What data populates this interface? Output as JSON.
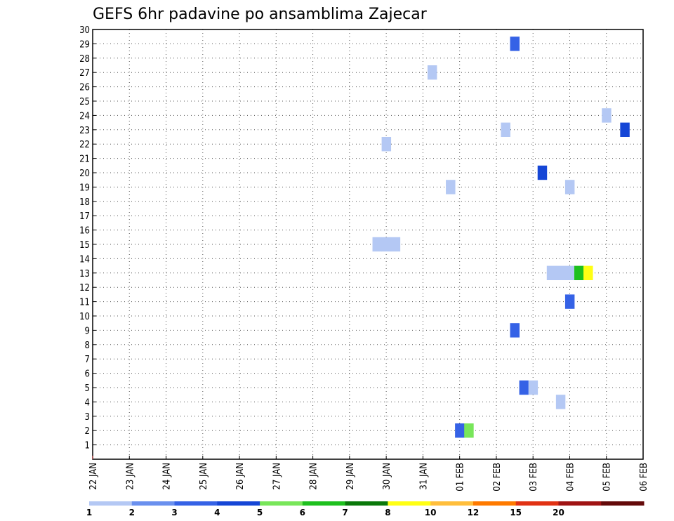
{
  "chart_data": {
    "type": "heatmap",
    "title": "GEFS 6hr padavine po ansamblima Zajecar",
    "xlabel": "",
    "ylabel": "",
    "x_tick_labels": [
      "22 JAN",
      "23 JAN",
      "24 JAN",
      "25 JAN",
      "26 JAN",
      "27 JAN",
      "28 JAN",
      "29 JAN",
      "30 JAN",
      "31 JAN",
      "01 FEB",
      "02 FEB",
      "03 FEB",
      "04 FEB",
      "05 FEB",
      "06 FEB"
    ],
    "x_range_days": [
      0,
      15
    ],
    "y_tick_labels": [
      "1",
      "2",
      "3",
      "4",
      "5",
      "6",
      "7",
      "8",
      "9",
      "10",
      "11",
      "12",
      "13",
      "14",
      "15",
      "16",
      "17",
      "18",
      "19",
      "20",
      "21",
      "22",
      "23",
      "24",
      "25",
      "26",
      "27",
      "28",
      "29",
      "30"
    ],
    "y_range": [
      0,
      30
    ],
    "grid": true,
    "levels": [
      1,
      2,
      3,
      4,
      5,
      6,
      7,
      8,
      10,
      12,
      15,
      20
    ],
    "colors": [
      "#b4c8f4",
      "#6a90ee",
      "#3562e6",
      "#1546d6",
      "#78e65a",
      "#1ec01e",
      "#0a780a",
      "#ffff14",
      "#ffbe3c",
      "#ff7a00",
      "#e13214",
      "#a01414",
      "#640a0a"
    ],
    "cells": [
      {
        "member": 29,
        "day": 11.5,
        "level": 2
      },
      {
        "member": 27,
        "day": 9.25,
        "level": 0
      },
      {
        "member": 24,
        "day": 14.0,
        "level": 0
      },
      {
        "member": 23,
        "day": 11.25,
        "level": 0
      },
      {
        "member": 23,
        "day": 14.5,
        "level": 3
      },
      {
        "member": 22,
        "day": 8.0,
        "level": 0
      },
      {
        "member": 20,
        "day": 12.25,
        "level": 3
      },
      {
        "member": 19,
        "day": 9.75,
        "level": 0
      },
      {
        "member": 19,
        "day": 13.0,
        "level": 0
      },
      {
        "member": 15,
        "day": 7.75,
        "level": 0
      },
      {
        "member": 15,
        "day": 8.0,
        "level": 0
      },
      {
        "member": 15,
        "day": 8.25,
        "level": 0
      },
      {
        "member": 13,
        "day": 12.5,
        "level": 0
      },
      {
        "member": 13,
        "day": 12.75,
        "level": 0
      },
      {
        "member": 13,
        "day": 13.0,
        "level": 0
      },
      {
        "member": 13,
        "day": 13.25,
        "level": 5
      },
      {
        "member": 13,
        "day": 13.5,
        "level": 7
      },
      {
        "member": 11,
        "day": 13.0,
        "level": 2
      },
      {
        "member": 9,
        "day": 11.5,
        "level": 2
      },
      {
        "member": 5,
        "day": 11.75,
        "level": 2
      },
      {
        "member": 5,
        "day": 12.0,
        "level": 0
      },
      {
        "member": 4,
        "day": 12.75,
        "level": 0
      },
      {
        "member": 2,
        "day": 10.0,
        "level": 2
      },
      {
        "member": 2,
        "day": 10.25,
        "level": 4
      }
    ]
  }
}
